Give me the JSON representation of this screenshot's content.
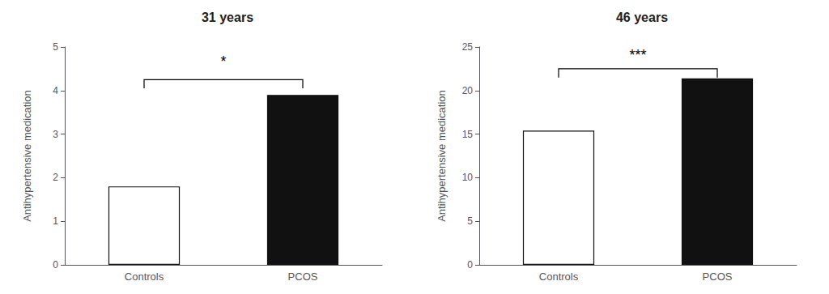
{
  "chart_data": [
    {
      "type": "bar",
      "title": "31 years",
      "categories": [
        "Controls",
        "PCOS"
      ],
      "values": [
        1.8,
        3.9
      ],
      "colors": [
        "#ffffff",
        "#111111"
      ],
      "ylabel": "Antihypertensive medication",
      "ylim": [
        0,
        5
      ],
      "yticks": [
        0,
        1,
        2,
        3,
        4,
        5
      ],
      "grid": false,
      "annotations": [
        {
          "text": "*",
          "y": 4.5,
          "bracket_y": 4.25
        }
      ]
    },
    {
      "type": "bar",
      "title": "46 years",
      "categories": [
        "Controls",
        "PCOS"
      ],
      "values": [
        15.4,
        21.4
      ],
      "colors": [
        "#ffffff",
        "#111111"
      ],
      "ylabel": "Antihypertensive medication",
      "ylim": [
        0,
        25
      ],
      "yticks": [
        0,
        5,
        10,
        15,
        20,
        25
      ],
      "grid": false,
      "annotations": [
        {
          "text": "***",
          "y": 23.2,
          "bracket_y": 22.5
        }
      ]
    }
  ]
}
